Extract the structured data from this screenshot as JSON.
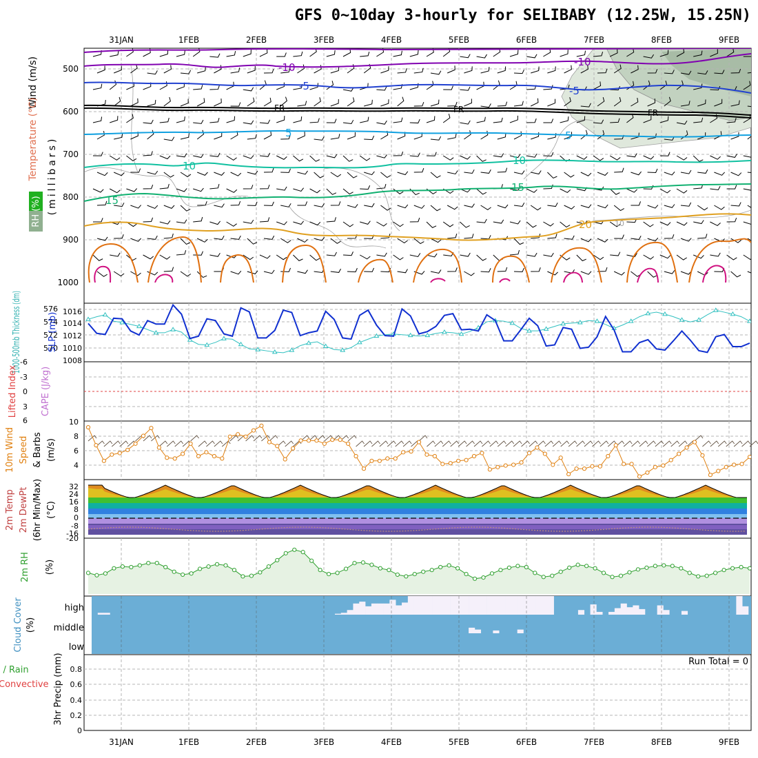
{
  "title": "GFS 0~10day 3-hourly for SELIBABY (12.25W, 15.25N)",
  "dates": [
    "31JAN",
    "1FEB",
    "2FEB",
    "3FEB",
    "4FEB",
    "5FEB",
    "6FEB",
    "7FEB",
    "8FEB",
    "9FEB"
  ],
  "colors": {
    "grid": "#b4b4b4",
    "temp_m10": "#8000b0",
    "temp_m5": "#2040d0",
    "temp_fr": "#000000",
    "temp_5": "#10a0e0",
    "temp_10": "#10c0a0",
    "temp_15": "#10b070",
    "temp_20": "#e0a020",
    "temp_25": "#e07010",
    "temp_30": "#d01080",
    "rh": "#90b090",
    "slp": "#1030d0",
    "thickness": "#30c0c0",
    "wind10": "#e08010",
    "rh2m": "#30a030",
    "cloud": "#6baed6",
    "cloud_clear": "#f5f0fa"
  },
  "panels": {
    "upper": {
      "left_label_wind": "Wind (m/s)",
      "left_label_temp": "Temperature (°C)",
      "left_label_rh": "RH (%)",
      "axis_label": "(millibars)",
      "ticks": [
        "500",
        "600",
        "700",
        "800",
        "900",
        "1000"
      ],
      "contour_labels": [
        {
          "text": "-10",
          "color": "#8000b0"
        },
        {
          "text": "-10",
          "color": "#8000b0"
        },
        {
          "text": "-5",
          "color": "#2040d0"
        },
        {
          "text": "-5",
          "color": "#2040d0"
        },
        {
          "text": "FR",
          "color": "#000000"
        },
        {
          "text": "FR",
          "color": "#000000"
        },
        {
          "text": "FR",
          "color": "#000000"
        },
        {
          "text": "5",
          "color": "#10a0e0"
        },
        {
          "text": "5",
          "color": "#10a0e0"
        },
        {
          "text": "10",
          "color": "#10c0a0"
        },
        {
          "text": "10",
          "color": "#10c0a0"
        },
        {
          "text": "15",
          "color": "#10b070"
        },
        {
          "text": "15",
          "color": "#10b070"
        },
        {
          "text": "20",
          "color": "#e0a020"
        },
        {
          "text": "10",
          "color": "#a0a0a0"
        }
      ]
    },
    "slp": {
      "label_thickness": "1000-500mb Thickness (dm)",
      "label_slp": "SLP (mb)",
      "thick_ticks": [
        "576",
        "574",
        "572",
        "570"
      ],
      "slp_ticks": [
        "1016",
        "1014",
        "1012",
        "1010",
        "1008"
      ]
    },
    "cape": {
      "label_li": "Lifted Index",
      "label_cape": "CAPE (J/kg)",
      "ticks": [
        "-6",
        "-3",
        "0",
        "3",
        "6"
      ]
    },
    "wind10": {
      "label1": "10m Wind",
      "label2": "Speed",
      "label3": "& Barbs",
      "label4": "(m/s)",
      "ticks": [
        "10",
        "8",
        "6",
        "4"
      ]
    },
    "temp2m": {
      "label1": "2m Temp",
      "label2": "2m DewPt",
      "label3": "(6hr Min/Max)",
      "label4": "(°C)",
      "ticks": [
        "32",
        "24",
        "16",
        "8",
        "0",
        "-8",
        "-16",
        "-20"
      ]
    },
    "rh2m": {
      "label": "2m RH",
      "unit": "(%)"
    },
    "cloud": {
      "label": "Cloud Cover",
      "unit": "(%)",
      "levels": [
        "high",
        "middle",
        "low"
      ]
    },
    "precip": {
      "label1": "Total / Rain",
      "label2": "Convective",
      "axis": "3hr Precip (mm)",
      "ticks": [
        "0.8",
        "0.6",
        "0.4",
        "0.2",
        "0"
      ],
      "run_total": "Run Total = 0"
    }
  },
  "chart_data": [
    {
      "type": "line",
      "name": "slp",
      "title": "",
      "xlabel": "",
      "ylabel": "SLP (mb)",
      "ylim": [
        1007,
        1017
      ],
      "values": [
        1013.5,
        1011.8,
        1011.6,
        1014.4,
        1014.3,
        1012.2,
        1011.5,
        1014.0,
        1013.4,
        1013.4,
        1016.7,
        1015.1,
        1010.9,
        1011.3,
        1014.3,
        1014.0,
        1011.7,
        1011.3,
        1016.2,
        1015.5,
        1011.0,
        1011.0,
        1012.3,
        1015.8,
        1015.4,
        1011.4,
        1011.9,
        1012.2,
        1015.6,
        1014.2,
        1011.0,
        1010.8,
        1014.9,
        1015.8,
        1013.2,
        1011.4,
        1011.3,
        1016.0,
        1014.8,
        1011.7,
        1012.1,
        1013.0,
        1014.9,
        1015.2,
        1012.4,
        1012.5,
        1012.2,
        1015.0,
        1014.0,
        1010.5,
        1010.5,
        1012.4,
        1014.4,
        1013.1,
        1009.6,
        1009.8,
        1012.8,
        1012.5,
        1009.2,
        1009.4,
        1011.2,
        1014.7,
        1012.4,
        1008.6,
        1008.6,
        1010.2,
        1010.7,
        1009.1,
        1008.9,
        1010.5,
        1012.2,
        1010.6,
        1008.8,
        1008.5,
        1011.2,
        1011.6,
        1009.5,
        1009.5,
        1010.1
      ]
    },
    {
      "type": "line",
      "name": "thickness",
      "title": "",
      "xlabel": "",
      "ylabel": "1000-500mb Thickness (dm)",
      "ylim": [
        568,
        577
      ],
      "values": [
        574.5,
        574.9,
        575.2,
        574.2,
        574.0,
        573.7,
        573.4,
        572.9,
        572.4,
        572.4,
        572.9,
        572.5,
        571.3,
        570.6,
        570.5,
        570.9,
        571.5,
        571.4,
        570.6,
        569.9,
        569.8,
        569.6,
        569.4,
        569.3,
        569.7,
        570.4,
        570.8,
        571.0,
        570.3,
        569.8,
        569.7,
        570.1,
        570.9,
        571.4,
        571.9,
        572.1,
        572.2,
        572.1,
        572.0,
        571.9,
        572.0,
        572.3,
        572.5,
        572.4,
        572.2,
        572.6,
        573.2,
        574.1,
        574.3,
        574.2,
        573.9,
        573.1,
        572.7,
        572.7,
        573.0,
        573.4,
        573.8,
        573.9,
        574.0,
        574.3,
        574.2,
        573.7,
        573.1,
        573.6,
        574.2,
        574.9,
        575.4,
        575.6,
        575.3,
        574.9,
        574.4,
        574.1,
        574.4,
        575.2,
        575.9,
        575.6,
        575.3,
        574.9,
        574.2
      ]
    },
    {
      "type": "line",
      "name": "wind10m",
      "title": "",
      "xlabel": "",
      "ylabel": "Speed (m/s)",
      "ylim": [
        2.5,
        10
      ],
      "values": [
        9.2,
        6.9,
        4.9,
        5.7,
        5.9,
        6.3,
        7.1,
        8.1,
        9.1,
        6.6,
        5.3,
        5.2,
        5.8,
        7.1,
        5.5,
        6.0,
        5.5,
        5.2,
        8.0,
        8.3,
        8.0,
        8.8,
        9.4,
        7.3,
        6.8,
        5.1,
        6.5,
        7.5,
        7.5,
        7.5,
        7.1,
        7.6,
        7.6,
        7.1,
        5.5,
        3.9,
        4.9,
        4.9,
        5.2,
        5.2,
        6.0,
        6.1,
        7.3,
        5.7,
        5.5,
        4.5,
        4.6,
        4.9,
        5.0,
        5.5,
        5.9,
        3.8,
        4.1,
        4.3,
        4.4,
        4.7,
        5.9,
        6.6,
        5.8,
        4.4,
        5.3,
        3.2,
        3.9,
        3.9,
        4.2,
        4.2,
        5.5,
        6.9,
        4.5,
        4.5,
        2.9,
        3.4,
        4.1,
        4.3,
        5.0,
        5.8,
        6.6,
        7.3,
        5.6,
        3.1,
        3.6,
        4.1,
        4.4,
        4.5,
        5.4
      ]
    },
    {
      "type": "line",
      "name": "rh2m",
      "title": "",
      "xlabel": "",
      "ylabel": "(%)",
      "ylim": [
        0,
        100
      ],
      "values": [
        40,
        36,
        39,
        48,
        51,
        50,
        53,
        57,
        57,
        50,
        42,
        37,
        39,
        47,
        51,
        55,
        53,
        45,
        34,
        35,
        41,
        51,
        62,
        74,
        80,
        76,
        61,
        45,
        38,
        40,
        47,
        57,
        58,
        54,
        48,
        45,
        37,
        34,
        38,
        42,
        45,
        50,
        53,
        48,
        38,
        30,
        32,
        39,
        45,
        49,
        52,
        50,
        40,
        33,
        35,
        42,
        49,
        54,
        52,
        48,
        40,
        33,
        35,
        41,
        46,
        49,
        52,
        53,
        52,
        48,
        40,
        34,
        35,
        40,
        45,
        48,
        50,
        48
      ]
    },
    {
      "type": "area",
      "name": "cloud_high",
      "title": "",
      "xlabel": "",
      "ylabel": "Cloud Cover (%)",
      "ylim": [
        0,
        100
      ],
      "values": [
        0,
        10,
        10,
        0,
        0,
        0,
        0,
        0,
        0,
        0,
        0,
        0,
        0,
        0,
        0,
        0,
        0,
        0,
        0,
        0,
        0,
        0,
        0,
        0,
        0,
        0,
        0,
        0,
        0,
        0,
        0,
        0,
        0,
        0,
        0,
        0,
        0,
        0,
        0,
        0,
        5,
        10,
        25,
        60,
        70,
        45,
        60,
        60,
        60,
        80,
        50,
        65,
        100,
        100,
        100,
        100,
        100,
        100,
        100,
        100,
        100,
        100,
        100,
        100,
        100,
        100,
        100,
        100,
        100,
        100,
        100,
        100,
        100,
        100,
        100,
        100,
        0,
        0,
        0,
        0,
        25,
        0,
        55,
        15,
        0,
        15,
        35,
        60,
        40,
        50,
        30,
        0,
        0,
        50,
        25,
        0,
        0,
        20,
        0,
        0,
        0,
        0,
        0,
        0,
        0,
        0,
        100,
        45
      ]
    },
    {
      "type": "area",
      "name": "cloud_middle",
      "title": "",
      "xlabel": "",
      "ylabel": "Cloud Cover (%)",
      "ylim": [
        0,
        100
      ],
      "values": [
        0,
        0,
        0,
        0,
        0,
        0,
        0,
        0,
        0,
        0,
        0,
        0,
        0,
        0,
        0,
        0,
        0,
        0,
        0,
        0,
        0,
        0,
        0,
        0,
        0,
        0,
        0,
        0,
        0,
        0,
        0,
        0,
        0,
        0,
        0,
        0,
        0,
        0,
        0,
        0,
        0,
        0,
        0,
        0,
        0,
        0,
        0,
        0,
        0,
        0,
        0,
        0,
        0,
        0,
        0,
        0,
        0,
        0,
        0,
        0,
        0,
        0,
        30,
        20,
        0,
        0,
        15,
        0,
        0,
        0,
        20,
        0,
        0,
        0,
        0,
        0,
        0,
        0,
        0,
        0,
        0,
        0,
        0,
        0,
        0,
        0,
        0,
        0,
        0,
        0,
        0,
        0,
        0,
        0,
        0,
        0,
        0,
        0,
        0,
        0,
        0,
        0,
        0,
        0,
        0,
        0,
        0,
        0
      ]
    },
    {
      "type": "line",
      "name": "precip_3hr",
      "title": "",
      "xlabel": "",
      "ylabel": "3hr Precip (mm)",
      "ylim": [
        0,
        1
      ],
      "values": [
        0,
        0,
        0,
        0,
        0,
        0,
        0,
        0,
        0,
        0,
        0,
        0,
        0,
        0,
        0,
        0,
        0,
        0,
        0,
        0,
        0,
        0,
        0,
        0,
        0,
        0,
        0,
        0,
        0,
        0,
        0,
        0,
        0,
        0,
        0,
        0,
        0,
        0,
        0,
        0,
        0,
        0,
        0,
        0,
        0,
        0,
        0,
        0,
        0,
        0,
        0,
        0,
        0,
        0,
        0,
        0,
        0,
        0,
        0,
        0,
        0,
        0,
        0,
        0,
        0,
        0,
        0,
        0,
        0,
        0,
        0,
        0,
        0,
        0,
        0,
        0,
        0,
        0,
        0
      ]
    }
  ]
}
